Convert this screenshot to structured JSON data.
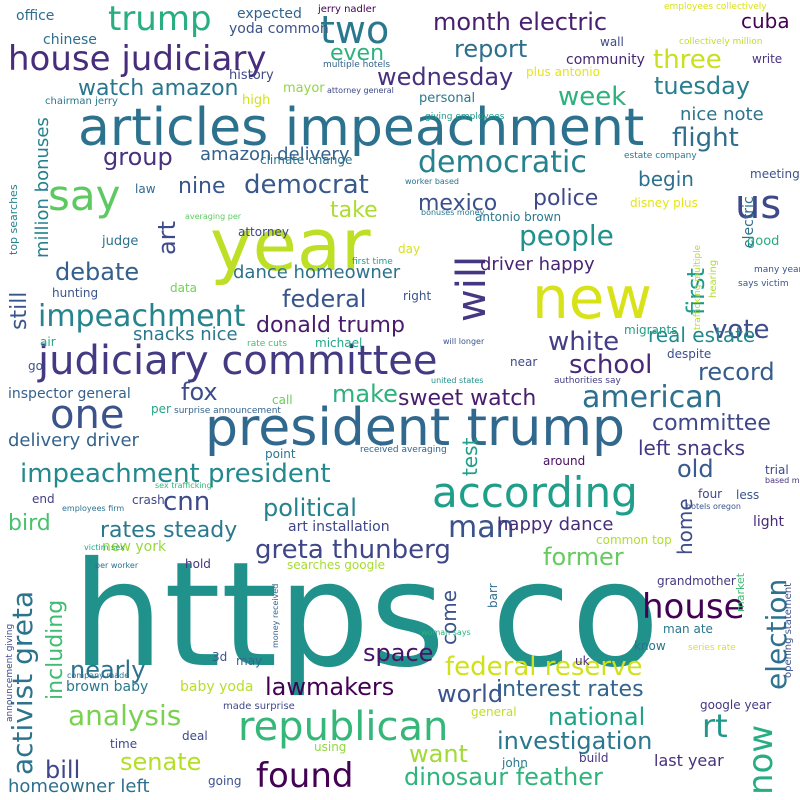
{
  "words": [
    {
      "text": "https co",
      "color": "#21918c"
    },
    {
      "text": "year",
      "color": "#bddf26"
    },
    {
      "text": "articles impeachment",
      "color": "#2c728e"
    },
    {
      "text": "president trump",
      "color": "#31688e"
    },
    {
      "text": "new",
      "color": "#d8e219"
    },
    {
      "text": "judiciary committee",
      "color": "#443a83"
    },
    {
      "text": "according",
      "color": "#1f9e89"
    },
    {
      "text": "say",
      "color": "#5ec962"
    },
    {
      "text": "one",
      "color": "#3b528b"
    },
    {
      "text": "republican",
      "color": "#35b779"
    },
    {
      "text": "house judiciary",
      "color": "#472d7b"
    },
    {
      "text": "trump",
      "color": "#28ae80"
    },
    {
      "text": "two",
      "color": "#2a788e"
    },
    {
      "text": "us",
      "color": "#3e4989"
    },
    {
      "text": "will",
      "color": "#453781"
    },
    {
      "text": "house",
      "color": "#440154"
    },
    {
      "text": "impeachment",
      "color": "#25848e"
    },
    {
      "text": "impeachment president",
      "color": "#23898e"
    },
    {
      "text": "now",
      "color": "#26ad81"
    },
    {
      "text": "found",
      "color": "#440154"
    },
    {
      "text": "democratic",
      "color": "#26828e"
    },
    {
      "text": "greta thunberg",
      "color": "#3f4788"
    },
    {
      "text": "man",
      "color": "#3b528b"
    },
    {
      "text": "american",
      "color": "#2d708e"
    },
    {
      "text": "month electric",
      "color": "#481f70"
    },
    {
      "text": "rt",
      "color": "#1f988b"
    },
    {
      "text": "election",
      "color": "#2c728e"
    },
    {
      "text": "activist greta",
      "color": "#2c738e"
    },
    {
      "text": "people",
      "color": "#21918c"
    },
    {
      "text": "federal reserve",
      "color": "#d0e11c"
    },
    {
      "text": "analysis",
      "color": "#7ad151"
    },
    {
      "text": "white",
      "color": "#433e85"
    },
    {
      "text": "flight",
      "color": "#2e6e8e"
    },
    {
      "text": "three",
      "color": "#c8e020"
    },
    {
      "text": "cnn",
      "color": "#3e4a89"
    },
    {
      "text": "donald trump",
      "color": "#481b6d"
    },
    {
      "text": "democrat",
      "color": "#38598c"
    },
    {
      "text": "vote",
      "color": "#3d4e8a"
    },
    {
      "text": "school",
      "color": "#482878"
    },
    {
      "text": "week",
      "color": "#2db27d"
    },
    {
      "text": "watch amazon",
      "color": "#2a768e"
    },
    {
      "text": "dinosaur feather",
      "color": "#2fb47c"
    },
    {
      "text": "investigation",
      "color": "#2a778e"
    },
    {
      "text": "national",
      "color": "#1fa287"
    },
    {
      "text": "lawmakers",
      "color": "#440154"
    },
    {
      "text": "interest rates",
      "color": "#32658e"
    },
    {
      "text": "federal",
      "color": "#39568c"
    },
    {
      "text": "group",
      "color": "#46327e"
    },
    {
      "text": "debate",
      "color": "#355f8d"
    },
    {
      "text": "wednesday",
      "color": "#46317e"
    },
    {
      "text": "report",
      "color": "#2e6f8e"
    },
    {
      "text": "tuesday",
      "color": "#277f8e"
    },
    {
      "text": "political",
      "color": "#26828e"
    },
    {
      "text": "rates steady",
      "color": "#2a788e"
    },
    {
      "text": "world",
      "color": "#3a548c"
    },
    {
      "text": "former",
      "color": "#65cb5e"
    },
    {
      "text": "senate",
      "color": "#b5de2b"
    },
    {
      "text": "want",
      "color": "#a2da37"
    },
    {
      "text": "space",
      "color": "#481467"
    },
    {
      "text": "nearly",
      "color": "#2d718e"
    },
    {
      "text": "bill",
      "color": "#3f4788"
    },
    {
      "text": "old",
      "color": "#375b8d"
    },
    {
      "text": "record",
      "color": "#365c8d"
    },
    {
      "text": "first",
      "color": "#1e9b8a"
    },
    {
      "text": "art",
      "color": "#3e4a89"
    },
    {
      "text": "mexico",
      "color": "#3b518b"
    },
    {
      "text": "police",
      "color": "#3f4889"
    },
    {
      "text": "committee",
      "color": "#3f4788"
    },
    {
      "text": "left snacks",
      "color": "#453882"
    },
    {
      "text": "make",
      "color": "#2db27d"
    },
    {
      "text": "sweet watch",
      "color": "#481c6e"
    },
    {
      "text": "fox",
      "color": "#3d4d8a"
    },
    {
      "text": "take",
      "color": "#addc30"
    },
    {
      "text": "still",
      "color": "#3a548c"
    },
    {
      "text": "nine",
      "color": "#39568c"
    },
    {
      "text": "even",
      "color": "#2db27d"
    },
    {
      "text": "delivery driver",
      "color": "#33638d"
    },
    {
      "text": "amazon delivery",
      "color": "#33628d"
    },
    {
      "text": "happy dance",
      "color": "#472c7a"
    },
    {
      "text": "bird",
      "color": "#4ac16d"
    },
    {
      "text": "including",
      "color": "#40bd72"
    },
    {
      "text": "driver happy",
      "color": "#482475"
    },
    {
      "text": "begin",
      "color": "#2d718e"
    },
    {
      "text": "real estate",
      "color": "#23898e"
    },
    {
      "text": "cuba",
      "color": "#440154"
    },
    {
      "text": "come",
      "color": "#3b528b"
    },
    {
      "text": "home",
      "color": "#3d4e8a"
    },
    {
      "text": "test",
      "color": "#1fa088"
    },
    {
      "text": "million bonuses",
      "color": "#26818e"
    },
    {
      "text": "dance homeowner",
      "color": "#2c728e"
    },
    {
      "text": "snacks nice",
      "color": "#2a778e"
    },
    {
      "text": "nice note",
      "color": "#2c738e"
    },
    {
      "text": "homeowner left",
      "color": "#2e6f8e"
    },
    {
      "text": "community",
      "color": "#482576"
    },
    {
      "text": "electric",
      "color": "#2c728e"
    },
    {
      "text": "light",
      "color": "#482979"
    },
    {
      "text": "art installation",
      "color": "#3f4788"
    },
    {
      "text": "last year",
      "color": "#46327e"
    },
    {
      "text": "baby yoda",
      "color": "#b8de29"
    },
    {
      "text": "brown baby",
      "color": "#2a788e"
    },
    {
      "text": "new york",
      "color": "#98d83e"
    },
    {
      "text": "inspector general",
      "color": "#34618d"
    },
    {
      "text": "climate change",
      "color": "#2c738e"
    },
    {
      "text": "yoda common",
      "color": "#3b528b"
    },
    {
      "text": "chinese",
      "color": "#2d708e"
    },
    {
      "text": "office",
      "color": "#2d708e"
    },
    {
      "text": "expected",
      "color": "#32658e"
    },
    {
      "text": "jerry nadler",
      "color": "#440154"
    },
    {
      "text": "employees collectively",
      "color": "#d8e219"
    },
    {
      "text": "multiple hotels",
      "color": "#33638d"
    },
    {
      "text": "collectively million",
      "color": "#bddf26"
    },
    {
      "text": "write",
      "color": "#46327e"
    },
    {
      "text": "wall",
      "color": "#3e4a89"
    },
    {
      "text": "plus antonio",
      "color": "#e5e419"
    },
    {
      "text": "personal",
      "color": "#2a788e"
    },
    {
      "text": "attorney general",
      "color": "#3e4989"
    },
    {
      "text": "mayor",
      "color": "#8fd744"
    },
    {
      "text": "history",
      "color": "#3e4989"
    },
    {
      "text": "high",
      "color": "#d2e21b"
    },
    {
      "text": "chairman jerry",
      "color": "#2a778e"
    },
    {
      "text": "top searches",
      "color": "#26828e"
    },
    {
      "text": "giving employees",
      "color": "#1f998a"
    },
    {
      "text": "estate company",
      "color": "#2a788e"
    },
    {
      "text": "meeting",
      "color": "#3b528b"
    },
    {
      "text": "worker based",
      "color": "#2c738e"
    },
    {
      "text": "law",
      "color": "#31688e"
    },
    {
      "text": "attorney",
      "color": "#404688"
    },
    {
      "text": "averaging per",
      "color": "#5ec962"
    },
    {
      "text": "bonuses money",
      "color": "#2a788e"
    },
    {
      "text": "antonio brown",
      "color": "#2a788e"
    },
    {
      "text": "disney plus",
      "color": "#e5e419"
    },
    {
      "text": "good",
      "color": "#25ab82"
    },
    {
      "text": "judge",
      "color": "#2d718e"
    },
    {
      "text": "day",
      "color": "#d8e219"
    },
    {
      "text": "first time",
      "color": "#1fa188"
    },
    {
      "text": "trafficking multiple",
      "color": "#b0dd2f"
    },
    {
      "text": "hearing",
      "color": "#b0dd2f"
    },
    {
      "text": "many years",
      "color": "#3b528b"
    },
    {
      "text": "says victim",
      "color": "#38598c"
    },
    {
      "text": "based many",
      "color": "#46337f"
    },
    {
      "text": "hunting",
      "color": "#3a548c"
    },
    {
      "text": "data",
      "color": "#73d056"
    },
    {
      "text": "right",
      "color": "#3b528b"
    },
    {
      "text": "michael",
      "color": "#22a785"
    },
    {
      "text": "migrants",
      "color": "#1fa188"
    },
    {
      "text": "despite",
      "color": "#3d4d8a"
    },
    {
      "text": "air",
      "color": "#22a785"
    },
    {
      "text": "rate cuts",
      "color": "#44bf70"
    },
    {
      "text": "will longer",
      "color": "#3a548c"
    },
    {
      "text": "united states",
      "color": "#21918c"
    },
    {
      "text": "authorities say",
      "color": "#433d84"
    },
    {
      "text": "near",
      "color": "#3e4989"
    },
    {
      "text": "go",
      "color": "#3a548c"
    },
    {
      "text": "per",
      "color": "#21a585"
    },
    {
      "text": "surprise announcement",
      "color": "#33638d"
    },
    {
      "text": "call",
      "color": "#6ccd5a"
    },
    {
      "text": "point",
      "color": "#2a768e"
    },
    {
      "text": "received averaging",
      "color": "#32658e"
    },
    {
      "text": "around",
      "color": "#470d60"
    },
    {
      "text": "trial",
      "color": "#3e4989"
    },
    {
      "text": "sex trafficking",
      "color": "#34b679"
    },
    {
      "text": "crash",
      "color": "#3f4788"
    },
    {
      "text": "end",
      "color": "#433e85"
    },
    {
      "text": "four",
      "color": "#3e4989"
    },
    {
      "text": "less",
      "color": "#3b528b"
    },
    {
      "text": "employees firm",
      "color": "#2c728e"
    },
    {
      "text": "victim sex",
      "color": "#22a785"
    },
    {
      "text": "common top",
      "color": "#b0dd2f"
    },
    {
      "text": "hotels oregon",
      "color": "#3a548c"
    },
    {
      "text": "market",
      "color": "#3fbc73"
    },
    {
      "text": "per worker",
      "color": "#2c728e"
    },
    {
      "text": "hold",
      "color": "#463480"
    },
    {
      "text": "searches google",
      "color": "#a8db34"
    },
    {
      "text": "money received",
      "color": "#33638d"
    },
    {
      "text": "barr",
      "color": "#2e6e8e"
    },
    {
      "text": "grandmother",
      "color": "#453781"
    },
    {
      "text": "opening statement",
      "color": "#3b528b"
    },
    {
      "text": "man ate",
      "color": "#2a768e"
    },
    {
      "text": "know",
      "color": "#2c728e"
    },
    {
      "text": "series rate",
      "color": "#dde318"
    },
    {
      "text": "woman says",
      "color": "#2db27d"
    },
    {
      "text": "company made",
      "color": "#2c728e"
    },
    {
      "text": "3d",
      "color": "#3b528b"
    },
    {
      "text": "may",
      "color": "#31688e"
    },
    {
      "text": "uk",
      "color": "#472f7d"
    },
    {
      "text": "announcement giving",
      "color": "#3e4989"
    },
    {
      "text": "made surprise",
      "color": "#3e4989"
    },
    {
      "text": "google year",
      "color": "#453882"
    },
    {
      "text": "general",
      "color": "#bddf26"
    },
    {
      "text": "deal",
      "color": "#3e4989"
    },
    {
      "text": "time",
      "color": "#3e4989"
    },
    {
      "text": "using",
      "color": "#93d741"
    },
    {
      "text": "john",
      "color": "#2a788e"
    },
    {
      "text": "build",
      "color": "#46337f"
    },
    {
      "text": "going",
      "color": "#3b528b"
    }
  ]
}
